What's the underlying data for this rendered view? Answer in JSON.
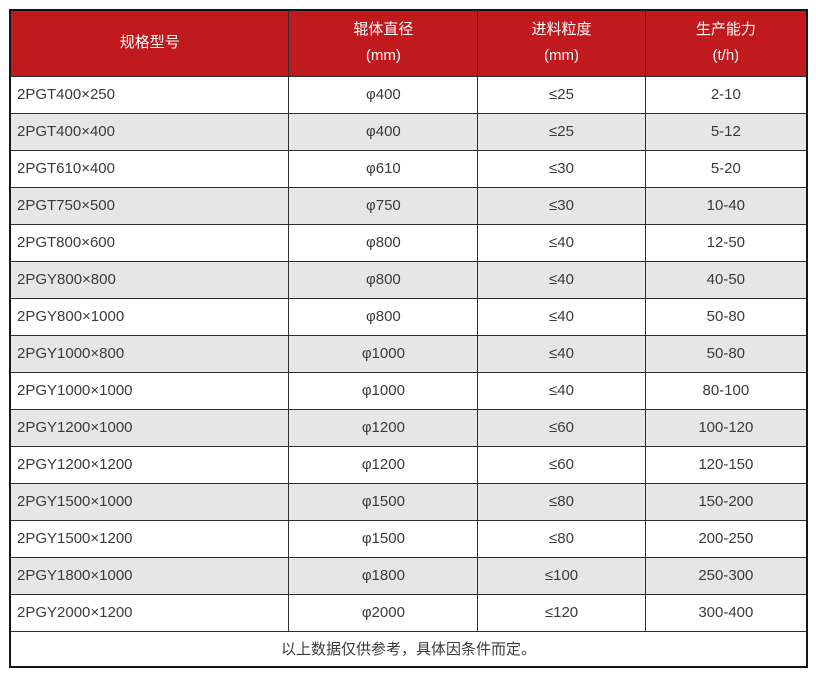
{
  "table": {
    "headers": [
      {
        "title": "规格型号",
        "unit": ""
      },
      {
        "title": "辊体直径",
        "unit": "(mm)"
      },
      {
        "title": "进料粒度",
        "unit": "(mm)"
      },
      {
        "title": "生产能力",
        "unit": "(t/h)"
      }
    ],
    "rows": [
      [
        "2PGT400×250",
        "φ400",
        "≤25",
        "2-10"
      ],
      [
        "2PGT400×400",
        "φ400",
        "≤25",
        "5-12"
      ],
      [
        "2PGT610×400",
        "φ610",
        "≤30",
        "5-20"
      ],
      [
        "2PGT750×500",
        "φ750",
        "≤30",
        "10-40"
      ],
      [
        "2PGT800×600",
        "φ800",
        "≤40",
        "12-50"
      ],
      [
        "2PGY800×800",
        "φ800",
        "≤40",
        "40-50"
      ],
      [
        "2PGY800×1000",
        "φ800",
        "≤40",
        "50-80"
      ],
      [
        "2PGY1000×800",
        "φ1000",
        "≤40",
        "50-80"
      ],
      [
        "2PGY1000×1000",
        "φ1000",
        "≤40",
        "80-100"
      ],
      [
        "2PGY1200×1000",
        "φ1200",
        "≤60",
        "100-120"
      ],
      [
        "2PGY1200×1200",
        "φ1200",
        "≤60",
        "120-150"
      ],
      [
        "2PGY1500×1000",
        "φ1500",
        "≤80",
        "150-200"
      ],
      [
        "2PGY1500×1200",
        "φ1500",
        "≤80",
        "200-250"
      ],
      [
        "2PGY1800×1000",
        "φ1800",
        "≤100",
        "250-300"
      ],
      [
        "2PGY2000×1200",
        "φ2000",
        "≤120",
        "300-400"
      ]
    ],
    "footnote": "以上数据仅供参考，具体因条件而定。"
  },
  "colors": {
    "header_bg": "#c01a1f",
    "header_text": "#ffffff",
    "row_alt_bg": "#e6e6e6",
    "body_text": "#3a3a3a",
    "border_inner": "#2e2e2e",
    "border_outer": "#161616"
  }
}
